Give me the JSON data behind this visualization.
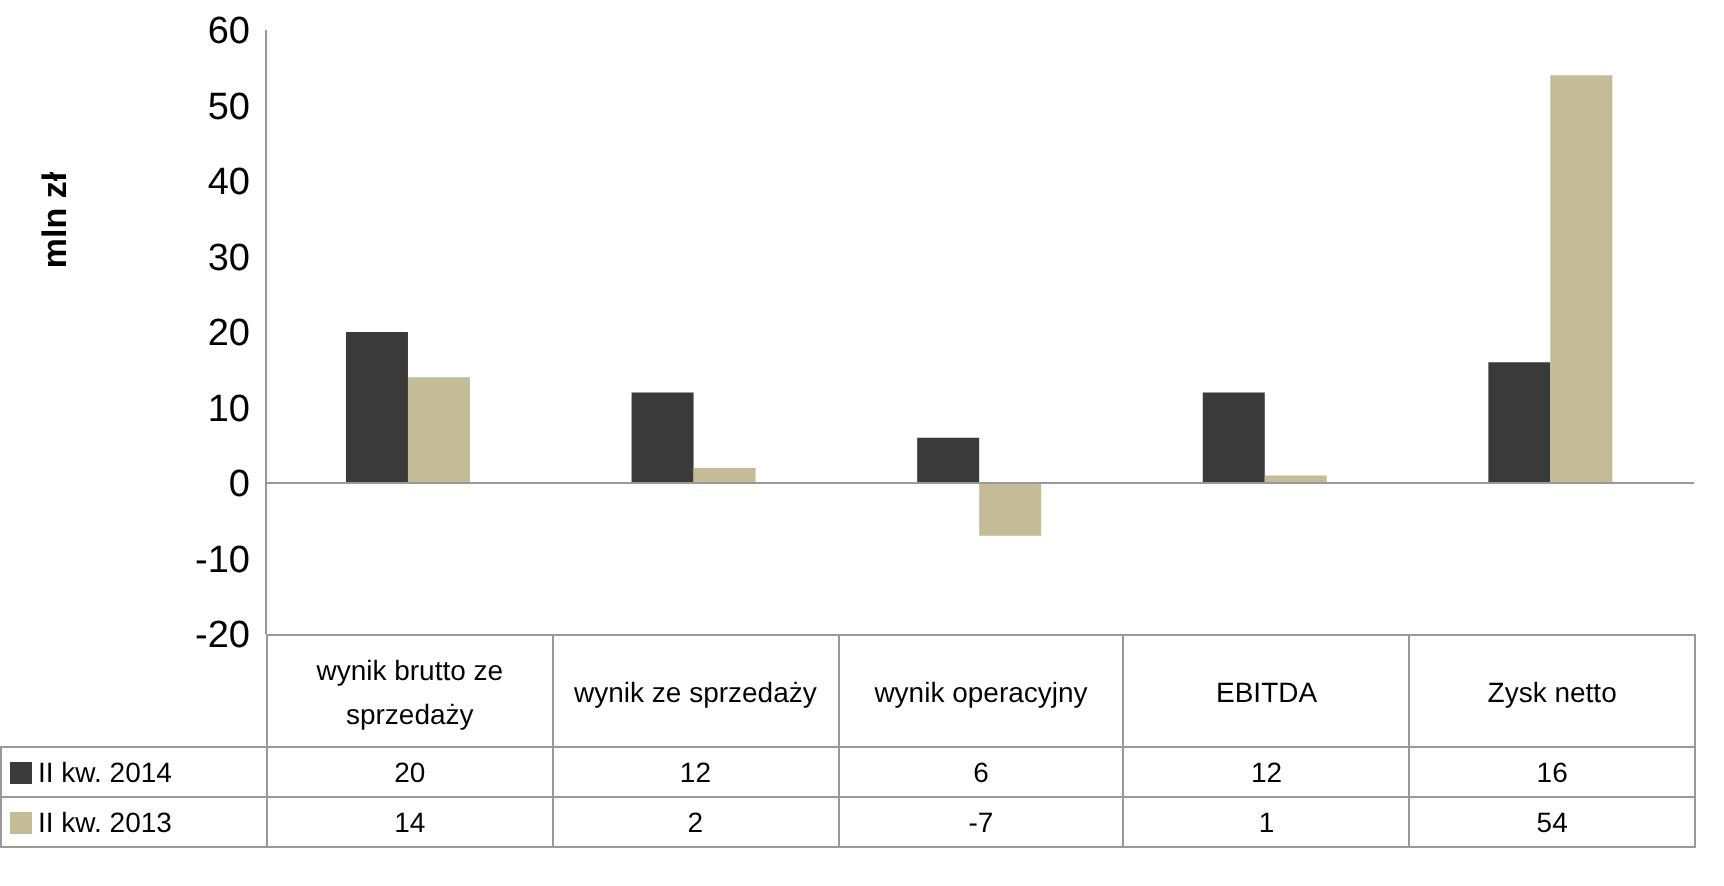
{
  "chart_data": {
    "type": "bar",
    "ylabel": "mln zł",
    "categories": [
      "wynik brutto ze sprzedaży",
      "wynik ze sprzedaży",
      "wynik operacyjny",
      "EBITDA",
      "Zysk netto"
    ],
    "series": [
      {
        "name": "II kw. 2014",
        "color": "#3a3a3a",
        "values": [
          20,
          12,
          6,
          12,
          16
        ]
      },
      {
        "name": "II kw. 2013",
        "color": "#c4bc96",
        "values": [
          14,
          2,
          -7,
          1,
          54
        ]
      }
    ],
    "ylim": [
      -20,
      60
    ],
    "yticks": [
      -20,
      -10,
      0,
      10,
      20,
      30,
      40,
      50,
      60
    ],
    "ref_lines": [
      {
        "axis": "y",
        "value": 0,
        "color": "#999999"
      }
    ],
    "legend": "bottom",
    "data_labels": true
  }
}
